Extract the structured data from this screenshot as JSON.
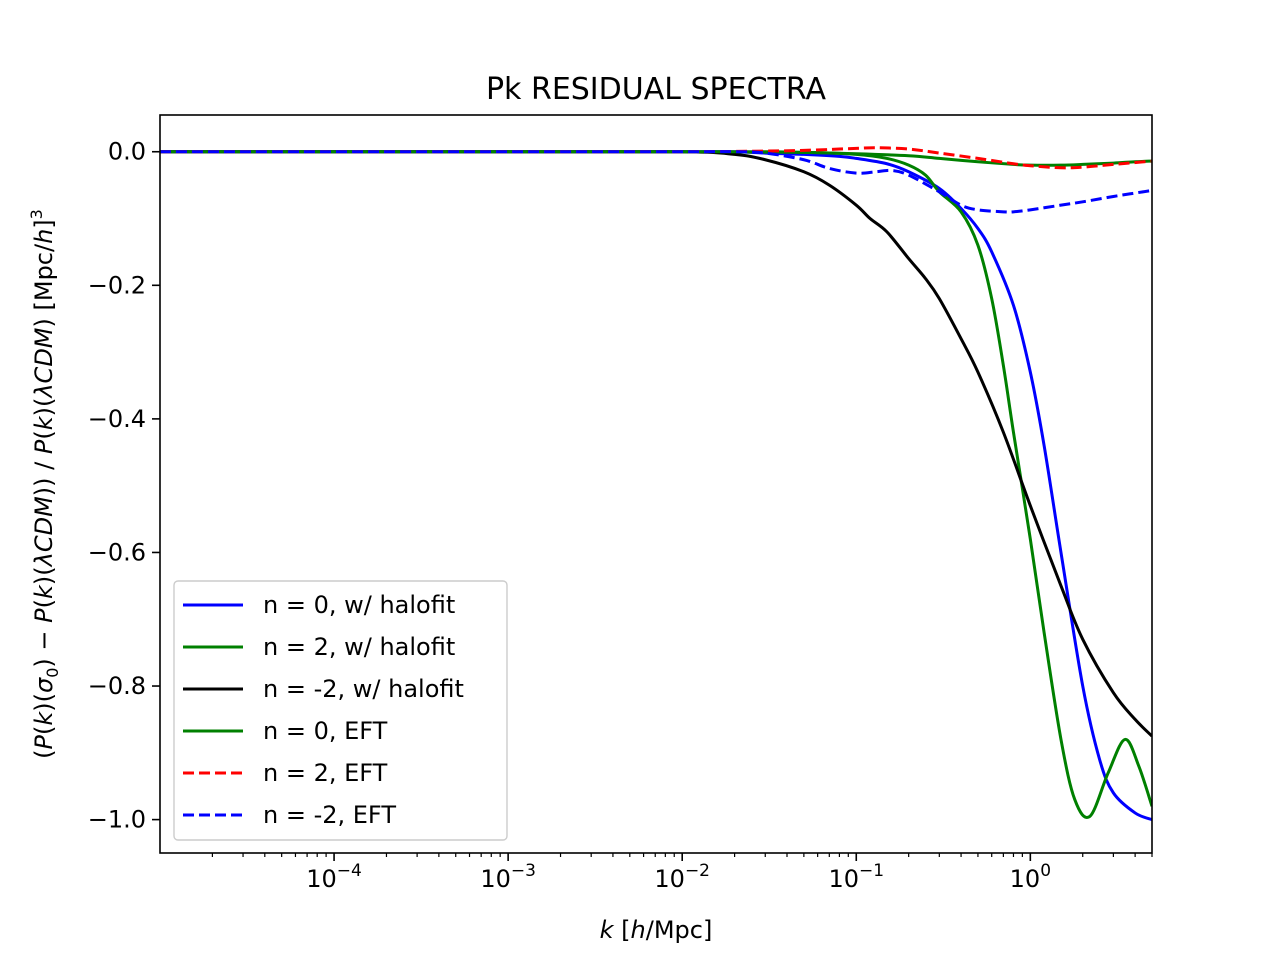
{
  "chart_data": {
    "type": "line",
    "title": "Pk RESIDUAL SPECTRA",
    "xlabel": "k  [h/Mpc]",
    "ylabel": "(P(k)(σ0) − P(k)(λCDM)) / P(k)(λCDM)  [Mpc/h]^3",
    "x_scale": "log",
    "xlim": [
      1e-05,
      5
    ],
    "ylim": [
      -1.05,
      0.055
    ],
    "x_ticks": [
      {
        "value": 0.0001,
        "base": "10",
        "exp": "−4"
      },
      {
        "value": 0.001,
        "base": "10",
        "exp": "−3"
      },
      {
        "value": 0.01,
        "base": "10",
        "exp": "−2"
      },
      {
        "value": 0.1,
        "base": "10",
        "exp": "−1"
      },
      {
        "value": 1,
        "base": "10",
        "exp": "0"
      }
    ],
    "y_ticks": [
      {
        "value": 0.0,
        "label": "0.0"
      },
      {
        "value": -0.2,
        "label": "−0.2"
      },
      {
        "value": -0.4,
        "label": "−0.4"
      },
      {
        "value": -0.6,
        "label": "−0.6"
      },
      {
        "value": -0.8,
        "label": "−0.8"
      },
      {
        "value": -1.0,
        "label": "−1.0"
      }
    ],
    "grid": false,
    "legend_position": "lower-left",
    "series": [
      {
        "name": "n = 0, w/ halofit",
        "color": "#0000ff",
        "style": "solid",
        "x": [
          1e-05,
          0.001,
          0.01,
          0.02,
          0.03,
          0.05,
          0.08,
          0.1,
          0.15,
          0.2,
          0.3,
          0.4,
          0.5,
          0.6,
          0.8,
          1.0,
          1.2,
          1.5,
          2.0,
          2.5,
          3.0,
          4.0,
          5.0
        ],
        "y": [
          0.0,
          0.0,
          0.0,
          0.0,
          -0.002,
          -0.004,
          -0.007,
          -0.01,
          -0.018,
          -0.03,
          -0.055,
          -0.085,
          -0.115,
          -0.15,
          -0.23,
          -0.33,
          -0.44,
          -0.6,
          -0.8,
          -0.91,
          -0.96,
          -0.99,
          -1.0
        ]
      },
      {
        "name": "n = 2, w/ halofit",
        "color": "#008000",
        "style": "solid",
        "x": [
          1e-05,
          0.001,
          0.01,
          0.05,
          0.1,
          0.15,
          0.2,
          0.25,
          0.3,
          0.4,
          0.5,
          0.6,
          0.7,
          0.8,
          1.0,
          1.2,
          1.5,
          1.8,
          2.2,
          2.8,
          3.5,
          4.2,
          5.0
        ],
        "y": [
          0.0,
          0.0,
          0.0,
          -0.001,
          -0.004,
          -0.01,
          -0.02,
          -0.035,
          -0.06,
          -0.09,
          -0.14,
          -0.22,
          -0.32,
          -0.42,
          -0.58,
          -0.72,
          -0.88,
          -0.97,
          -0.995,
          -0.93,
          -0.88,
          -0.92,
          -0.98
        ]
      },
      {
        "name": "n = -2, w/ halofit",
        "color": "#000000",
        "style": "solid",
        "x": [
          1e-05,
          0.001,
          0.01,
          0.02,
          0.03,
          0.05,
          0.07,
          0.1,
          0.12,
          0.15,
          0.2,
          0.25,
          0.3,
          0.4,
          0.5,
          0.7,
          1.0,
          1.5,
          2.0,
          3.0,
          4.0,
          5.0
        ],
        "y": [
          0.0,
          0.0,
          0.0,
          -0.004,
          -0.012,
          -0.03,
          -0.05,
          -0.08,
          -0.1,
          -0.12,
          -0.16,
          -0.19,
          -0.22,
          -0.28,
          -0.33,
          -0.42,
          -0.53,
          -0.65,
          -0.73,
          -0.81,
          -0.85,
          -0.875
        ]
      },
      {
        "name": "n = 0, EFT",
        "color": "#008000",
        "style": "solid",
        "x": [
          1e-05,
          0.001,
          0.01,
          0.03,
          0.05,
          0.1,
          0.2,
          0.3,
          0.5,
          0.8,
          1.0,
          1.5,
          2.0,
          3.0,
          4.0,
          5.0
        ],
        "y": [
          0.0,
          0.0,
          0.0,
          0.0,
          -0.001,
          -0.003,
          -0.006,
          -0.01,
          -0.015,
          -0.019,
          -0.02,
          -0.02,
          -0.019,
          -0.017,
          -0.015,
          -0.014
        ]
      },
      {
        "name": "n = 2, EFT",
        "color": "#ff0000",
        "style": "dashed",
        "x": [
          1e-05,
          0.001,
          0.01,
          0.03,
          0.05,
          0.08,
          0.1,
          0.13,
          0.2,
          0.3,
          0.5,
          0.8,
          1.0,
          1.5,
          2.0,
          3.0,
          5.0
        ],
        "y": [
          0.0,
          0.0,
          0.0,
          0.001,
          0.002,
          0.004,
          0.005,
          0.006,
          0.004,
          -0.002,
          -0.01,
          -0.018,
          -0.021,
          -0.024,
          -0.023,
          -0.019,
          -0.014
        ]
      },
      {
        "name": "n = -2, EFT",
        "color": "#0000ff",
        "style": "dashed",
        "x": [
          1e-05,
          0.001,
          0.01,
          0.02,
          0.03,
          0.05,
          0.07,
          0.1,
          0.13,
          0.16,
          0.2,
          0.3,
          0.4,
          0.5,
          0.7,
          0.8,
          1.0,
          1.5,
          2.0,
          3.0,
          5.0
        ],
        "y": [
          0.0,
          0.0,
          0.0,
          0.0,
          -0.002,
          -0.012,
          -0.025,
          -0.032,
          -0.03,
          -0.028,
          -0.035,
          -0.06,
          -0.08,
          -0.087,
          -0.09,
          -0.09,
          -0.087,
          -0.08,
          -0.075,
          -0.067,
          -0.058
        ]
      }
    ]
  }
}
